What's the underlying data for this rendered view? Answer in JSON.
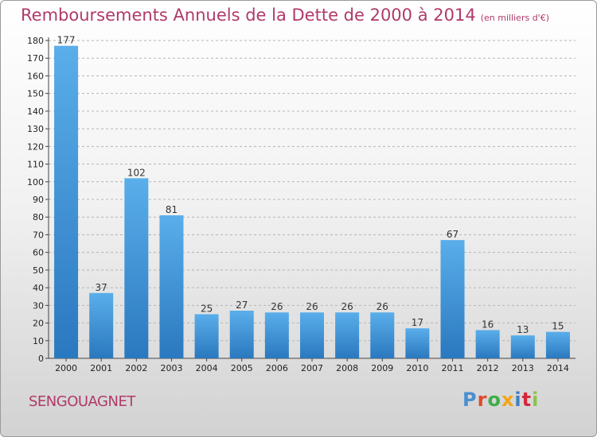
{
  "title": "Remboursements Annuels de la Dette de 2000 à 2014",
  "unit": "(en milliers d'€)",
  "city": "SENGOUAGNET",
  "logo": {
    "letters": [
      "P",
      "r",
      "o",
      "x",
      "i",
      "t",
      "i"
    ]
  },
  "colors": {
    "title": "#b03a6a",
    "bar_top": "#5aaeea",
    "bar_bottom": "#2a78bf",
    "gridline": "#b5b5b5"
  },
  "chart_data": {
    "type": "bar",
    "title": "Remboursements Annuels de la Dette de 2000 à 2014",
    "xlabel": "",
    "ylabel": "",
    "categories": [
      "2000",
      "2001",
      "2002",
      "2003",
      "2004",
      "2005",
      "2006",
      "2007",
      "2008",
      "2009",
      "2010",
      "2011",
      "2012",
      "2013",
      "2014"
    ],
    "values": [
      177,
      37,
      102,
      81,
      25,
      27,
      26,
      26,
      26,
      26,
      17,
      67,
      16,
      13,
      15
    ],
    "ylim": [
      0,
      180
    ],
    "yticks": [
      0,
      10,
      20,
      30,
      40,
      50,
      60,
      70,
      80,
      90,
      100,
      110,
      120,
      130,
      140,
      150,
      160,
      170,
      180
    ],
    "grid": true,
    "legend": "none"
  }
}
